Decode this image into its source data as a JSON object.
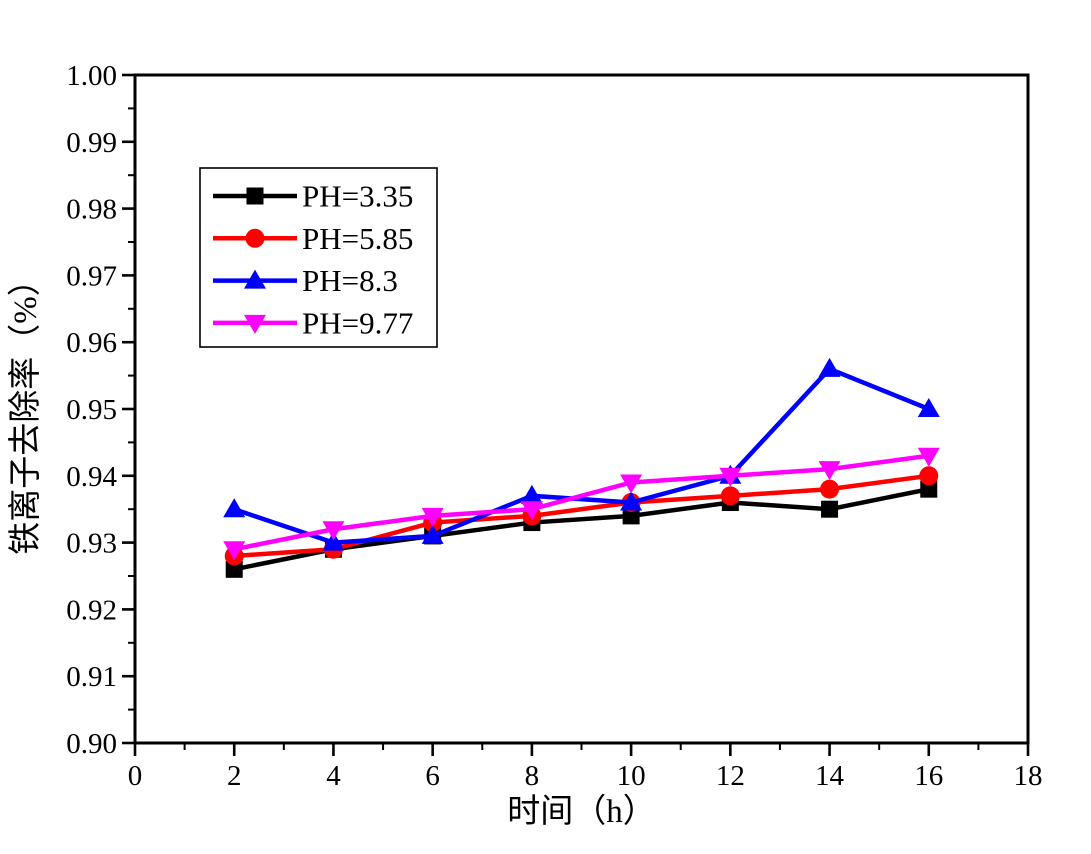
{
  "figure": {
    "background": "#ffffff",
    "frame_color": "#000000"
  },
  "chart_data": {
    "type": "line",
    "title": "",
    "xlabel": "时间（h）",
    "ylabel": "铁离子去除率（%）",
    "x": [
      2,
      4,
      6,
      8,
      10,
      12,
      14,
      16
    ],
    "xlim": [
      0,
      18
    ],
    "ylim": [
      0.9,
      1.0
    ],
    "x_tick_labels": [
      "0",
      "2",
      "4",
      "6",
      "8",
      "10",
      "12",
      "14",
      "16",
      "18"
    ],
    "x_major_ticks": [
      0,
      2,
      4,
      6,
      8,
      10,
      12,
      14,
      16,
      18
    ],
    "x_minor_step": 1,
    "y_tick_labels": [
      "0.90",
      "0.91",
      "0.92",
      "0.93",
      "0.94",
      "0.95",
      "0.96",
      "0.97",
      "0.98",
      "0.99",
      "1.00"
    ],
    "y_major_ticks": [
      0.9,
      0.91,
      0.92,
      0.93,
      0.94,
      0.95,
      0.96,
      0.97,
      0.98,
      0.99,
      1.0
    ],
    "y_minor_step": 0.005,
    "grid": false,
    "legend_position": "upper-left-inside",
    "series": [
      {
        "name": "PH=3.35",
        "color": "#000000",
        "marker": "square",
        "values": [
          0.926,
          0.929,
          0.931,
          0.933,
          0.934,
          0.936,
          0.935,
          0.938
        ]
      },
      {
        "name": "PH=5.85",
        "color": "#ff0000",
        "marker": "circle",
        "values": [
          0.928,
          0.929,
          0.933,
          0.934,
          0.936,
          0.937,
          0.938,
          0.94
        ]
      },
      {
        "name": "PH=8.3",
        "color": "#0000ff",
        "marker": "triangle-up",
        "values": [
          0.935,
          0.93,
          0.931,
          0.937,
          0.936,
          0.94,
          0.956,
          0.95
        ]
      },
      {
        "name": "PH=9.77",
        "color": "#ff00ff",
        "marker": "triangle-down",
        "values": [
          0.929,
          0.932,
          0.934,
          0.935,
          0.939,
          0.94,
          0.941,
          0.943
        ]
      }
    ]
  }
}
